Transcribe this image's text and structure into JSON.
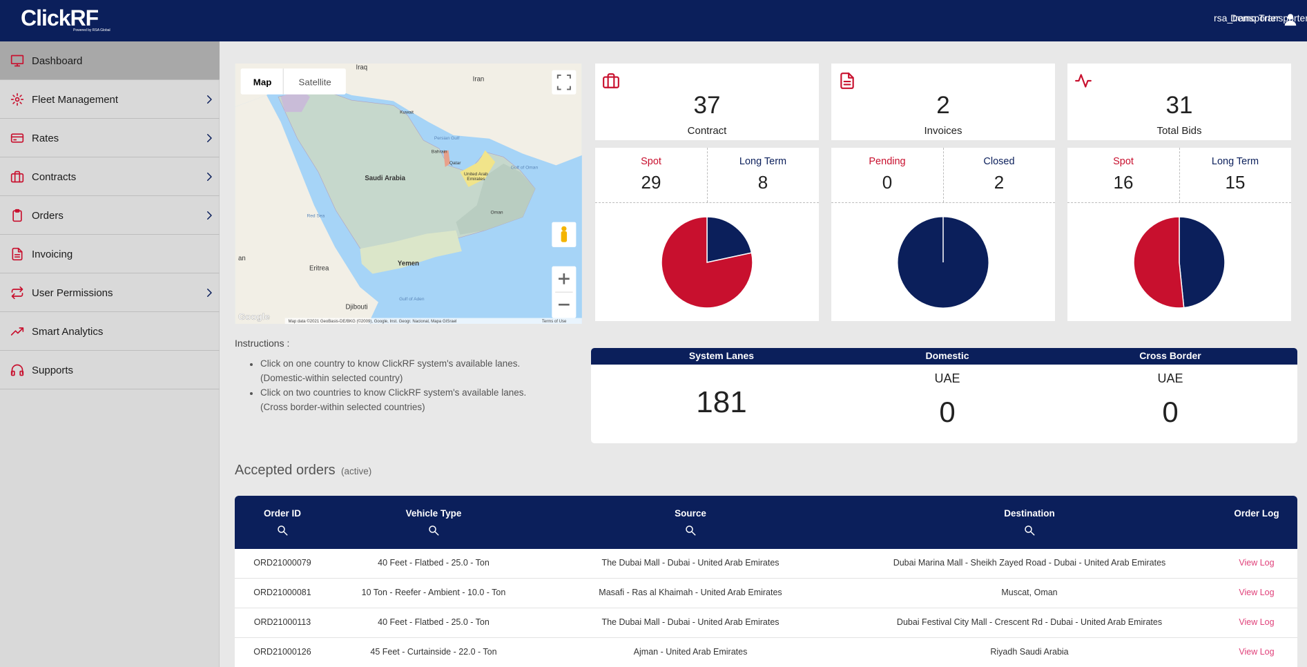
{
  "header": {
    "logo": "ClickRF",
    "logo_tagline": "Powered by RSA Global",
    "company": "Demo Transporter",
    "username": "rsa_transporter"
  },
  "sidebar": {
    "items": [
      {
        "label": "Dashboard",
        "active": true,
        "submenu": false
      },
      {
        "label": "Fleet Management",
        "active": false,
        "submenu": true
      },
      {
        "label": "Rates",
        "active": false,
        "submenu": true
      },
      {
        "label": "Contracts",
        "active": false,
        "submenu": true
      },
      {
        "label": "Orders",
        "active": false,
        "submenu": true
      },
      {
        "label": "Invoicing",
        "active": false,
        "submenu": false
      },
      {
        "label": "User Permissions",
        "active": false,
        "submenu": true
      },
      {
        "label": "Smart Analytics",
        "active": false,
        "submenu": false
      },
      {
        "label": "Supports",
        "active": false,
        "submenu": false
      }
    ]
  },
  "map": {
    "tabs": [
      "Map",
      "Satellite"
    ],
    "labels": [
      "Iraq",
      "Iran",
      "Kuwait",
      "Persian Gulf",
      "Bahrain",
      "Qatar",
      "United Arab",
      "Emirates",
      "Gulf of Oman",
      "Saudi Arabia",
      "Oman",
      "Red Sea",
      "Yemen",
      "Eritrea",
      "Gulf of Aden",
      "Djibouti",
      "an"
    ],
    "logo": "Google",
    "attribution": "Map data ©2021 GeoBasis-DE/BKG (©2009), Google, Inst. Geogr. Nacional, Mapa GISrael",
    "terms": "Terms of Use"
  },
  "instructions": {
    "title": "Instructions :",
    "items": [
      {
        "text": "Click on one country to know ClickRF system's available lanes.",
        "note": "(Domestic-within selected country)"
      },
      {
        "text": "Click on two countries to know ClickRF system's available lanes.",
        "note": "(Cross border-within selected countries)"
      }
    ]
  },
  "stats": {
    "colors": [
      "#c8102e",
      "#0b1f5b"
    ],
    "cards": [
      {
        "title": "Contract",
        "total": 37,
        "breakdown": [
          {
            "label": "Spot",
            "value": 29
          },
          {
            "label": "Long Term",
            "value": 8
          }
        ]
      },
      {
        "title": "Invoices",
        "total": 2,
        "breakdown": [
          {
            "label": "Pending",
            "value": 0
          },
          {
            "label": "Closed",
            "value": 2
          }
        ]
      },
      {
        "title": "Total Bids",
        "total": 31,
        "breakdown": [
          {
            "label": "Spot",
            "value": 16
          },
          {
            "label": "Long Term",
            "value": 15
          }
        ]
      }
    ]
  },
  "lanes": {
    "columns": [
      {
        "title": "System Lanes",
        "value": 181
      },
      {
        "title": "Domestic",
        "country": "UAE",
        "value": 0
      },
      {
        "title": "Cross Border",
        "country": "UAE",
        "value": 0
      }
    ]
  },
  "orders": {
    "title": "Accepted orders",
    "subtitle": "(active)",
    "columns": [
      "Order ID",
      "Vehicle Type",
      "Source",
      "Destination",
      "Order Log"
    ],
    "searchable": [
      true,
      true,
      true,
      true,
      false
    ],
    "rows": [
      [
        "ORD21000079",
        "40 Feet - Flatbed - 25.0 - Ton",
        "The Dubai Mall - Dubai - United Arab Emirates",
        "Dubai Marina Mall - Sheikh Zayed Road - Dubai - United Arab Emirates",
        "View Log"
      ],
      [
        "ORD21000081",
        "10 Ton - Reefer - Ambient - 10.0 - Ton",
        "Masafi - Ras al Khaimah - United Arab Emirates",
        "Muscat, Oman",
        "View Log"
      ],
      [
        "ORD21000113",
        "40 Feet - Flatbed - 25.0 - Ton",
        "The Dubai Mall - Dubai - United Arab Emirates",
        "Dubai Festival City Mall - Crescent Rd - Dubai - United Arab Emirates",
        "View Log"
      ],
      [
        "ORD21000126",
        "45 Feet - Curtainside - 22.0 - Ton",
        "Ajman - United Arab Emirates",
        "Riyadh Saudi Arabia",
        "View Log"
      ]
    ]
  }
}
